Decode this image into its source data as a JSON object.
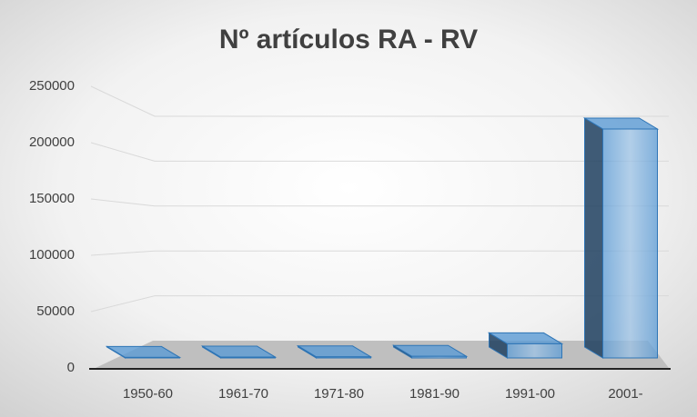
{
  "chart_data": {
    "type": "bar",
    "title": "Nº artículos RA - RV",
    "categories": [
      "1950-60",
      "1961-70",
      "1971-80",
      "1981-90",
      "1991-00",
      "2001-"
    ],
    "values": [
      500,
      800,
      1000,
      1500,
      13000,
      210000
    ],
    "color": "#5b9bd5",
    "ylim": [
      0,
      250000
    ],
    "yticks": [
      0,
      50000,
      100000,
      150000,
      200000,
      250000
    ],
    "grid": true
  }
}
